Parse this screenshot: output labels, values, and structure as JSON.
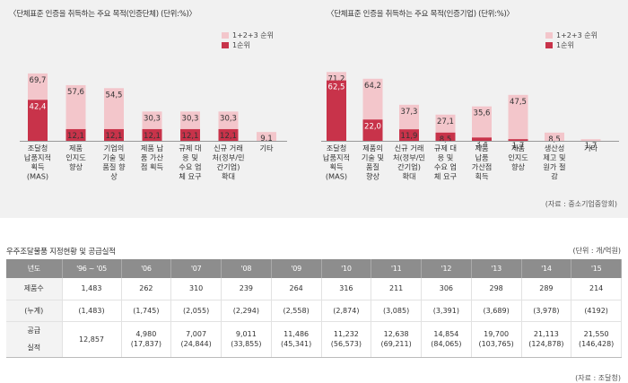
{
  "colors": {
    "primary_bar": "#c8334a",
    "total_bar": "#f3c6cb",
    "header_bg": "#8d8d8d"
  },
  "chart_data": [
    {
      "type": "bar",
      "title": "〈단체표준 인증을 취득하는 주요 목적(인증단체) (단위:%)〉",
      "legend": [
        "1+2+3 순위",
        "1순위"
      ],
      "categories": [
        [
          "조달청",
          "납품지적",
          "획득",
          "(MAS)"
        ],
        [
          "제품",
          "인지도",
          "향상"
        ],
        [
          "기업의",
          "기술 및",
          "품질 향",
          "상"
        ],
        [
          "제품 납",
          "품 가산",
          "점 획득"
        ],
        [
          "규제 대",
          "응 및",
          "수요 업",
          "체 요구"
        ],
        [
          "신규 거래",
          "처(정부/민",
          "간기업)",
          "확대"
        ],
        [
          "기타"
        ]
      ],
      "series": [
        {
          "name": "1+2+3 순위",
          "values": [
            69.7,
            57.6,
            54.5,
            30.3,
            30.3,
            30.3,
            9.1
          ],
          "labels": [
            "69,7",
            "57,6",
            "54,5",
            "30,3",
            "30,3",
            "30,3",
            "9,1"
          ]
        },
        {
          "name": "1순위",
          "values": [
            42.4,
            12.1,
            12.1,
            12.1,
            12.1,
            12.1,
            null
          ],
          "labels": [
            "42,4",
            "12,1",
            "12,1",
            "12,1",
            "12,1",
            "12,1",
            ""
          ]
        }
      ],
      "ylim": [
        0,
        90
      ]
    },
    {
      "type": "bar",
      "title": "〈단체표준 인증을 취득하는 주요 목적(인증기업) (단위:%)〉",
      "legend": [
        "1+2+3 순위",
        "1순위"
      ],
      "categories": [
        [
          "조달청",
          "납품지적",
          "획득",
          "(MAS)"
        ],
        [
          "제품의",
          "기술 및",
          "품질",
          "향상"
        ],
        [
          "신규 거래",
          "처(정부/민",
          "간기업)",
          "확대"
        ],
        [
          "규제 대",
          "응 및",
          "수요 업",
          "체 요구"
        ],
        [
          "제품",
          "납품",
          "가산점",
          "획득"
        ],
        [
          "제품",
          "인지도",
          "향상"
        ],
        [
          "생산성",
          "제고 및",
          "원가 절",
          "감"
        ],
        [
          "기타"
        ]
      ],
      "series": [
        {
          "name": "1+2+3 순위",
          "values": [
            71.2,
            64.2,
            37.3,
            27.1,
            35.6,
            47.5,
            8.5,
            1.7
          ],
          "labels": [
            "71,2",
            "64,2",
            "37,3",
            "27,1",
            "35,6",
            "47,5",
            "8,5",
            "1,7"
          ]
        },
        {
          "name": "1순위",
          "values": [
            62.5,
            22.0,
            11.9,
            8.5,
            3.4,
            1.7,
            null,
            null
          ],
          "labels": [
            "62,5",
            "22,0",
            "11,9",
            "8,5",
            "3,4",
            "1,7",
            "",
            ""
          ]
        }
      ],
      "ylim": [
        0,
        90
      ],
      "source": "(자료 : 중소기업중앙회)"
    }
  ],
  "table": {
    "title": "우주조달물품 지정현황 및 공급실적",
    "unit": "(단위 : 개/억원)",
    "headers": [
      "년도",
      "'96 ~ '05",
      "'06",
      "'07",
      "'08",
      "'09",
      "'10",
      "'11",
      "'12",
      "'13",
      "'14",
      "'15"
    ],
    "rows": {
      "products": {
        "label": "제품수",
        "values": [
          "1,483",
          "262",
          "310",
          "239",
          "264",
          "316",
          "211",
          "306",
          "298",
          "289",
          "214"
        ]
      },
      "cumulative": {
        "label": "(누계)",
        "values": [
          "(1,483)",
          "(1,745)",
          "(2,055)",
          "(2,294)",
          "(2,558)",
          "(2,874)",
          "(3,085)",
          "(3,391)",
          "(3,689)",
          "(3,978)",
          "(4192)"
        ]
      },
      "supply": {
        "label_top": "공급",
        "label_bottom": "실적",
        "values": [
          "12,857",
          "4,980",
          "7,007",
          "9,011",
          "11,486",
          "11,232",
          "12,638",
          "14,854",
          "19,700",
          "21,113",
          "21,550"
        ],
        "subs": [
          "",
          "(17,837)",
          "(24,844)",
          "(33,855)",
          "(45,341)",
          "(56,573)",
          "(69,211)",
          "(84,065)",
          "(103,765)",
          "(124,878)",
          "(146,428)"
        ]
      }
    },
    "source": "(자료 : 조달청)"
  }
}
